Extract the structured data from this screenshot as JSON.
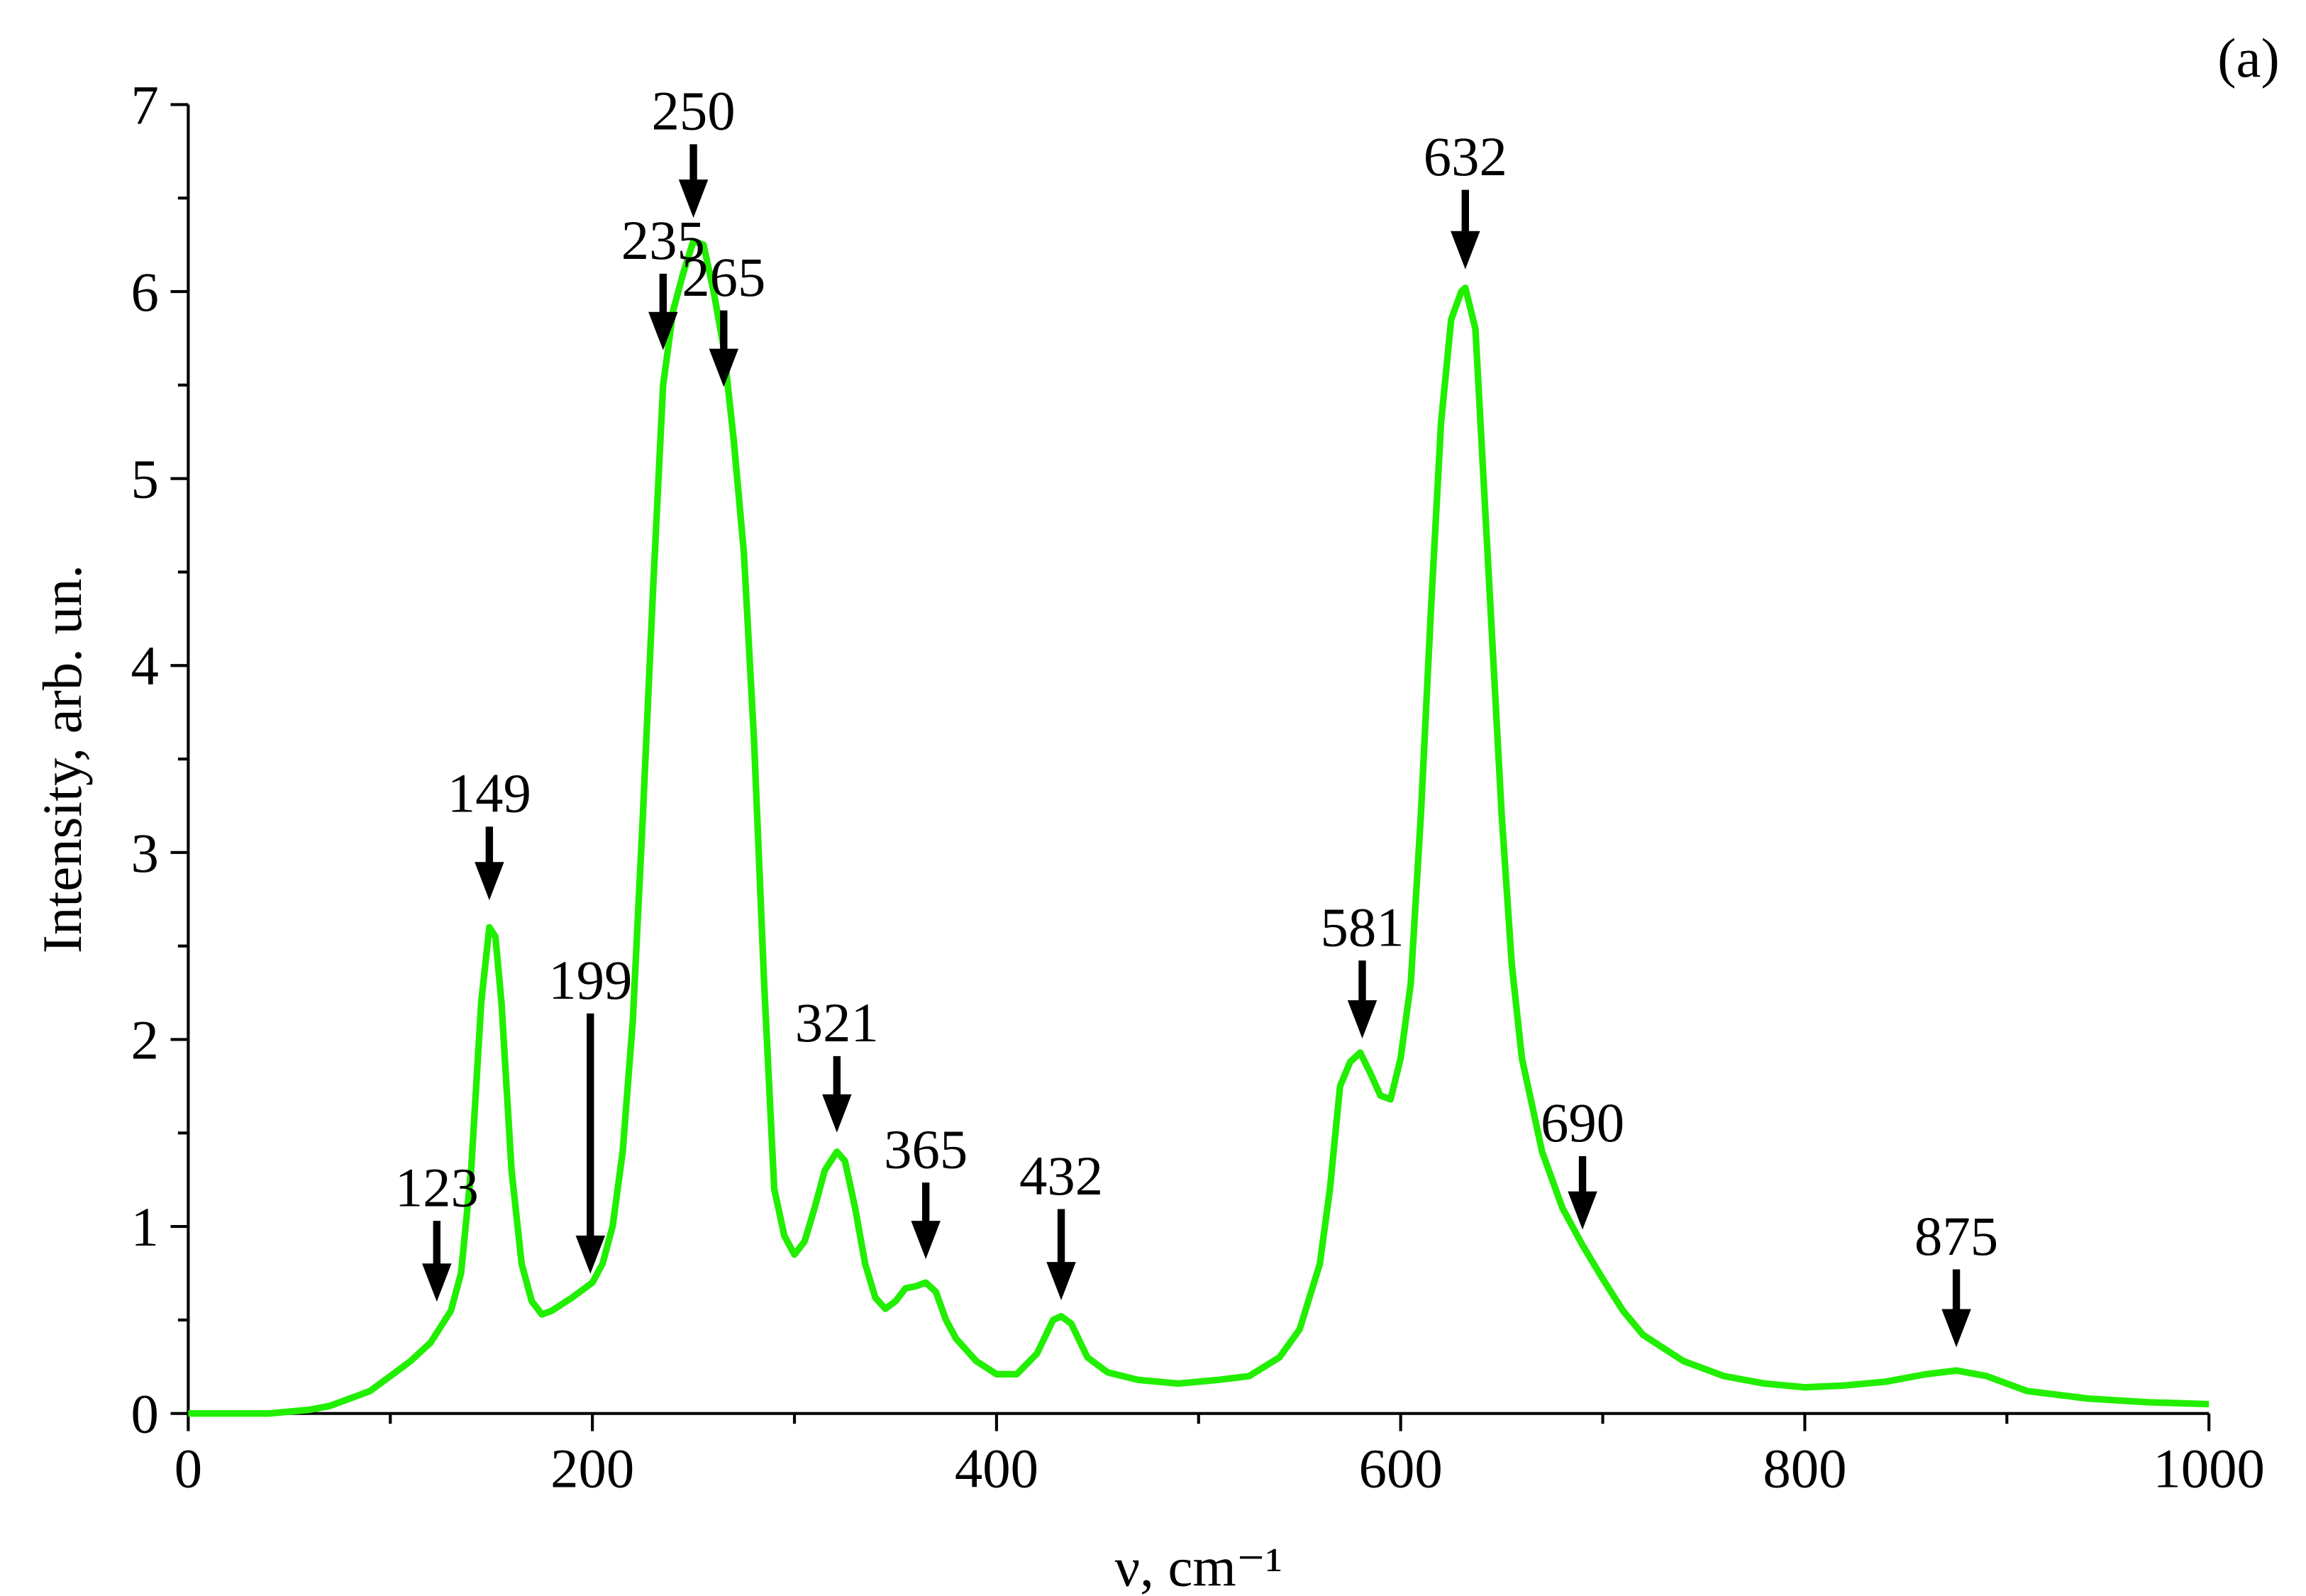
{
  "chart_data": {
    "type": "line",
    "title": "(a)",
    "x_label": "ν, cm⁻¹",
    "y_label": "Intensity, arb. un.",
    "xlim": [
      0,
      1000
    ],
    "ylim": [
      0,
      7
    ],
    "xticks": [
      0,
      200,
      400,
      600,
      800,
      1000
    ],
    "yticks": [
      0,
      1,
      2,
      3,
      4,
      5,
      6,
      7
    ],
    "x": [
      0,
      20,
      40,
      60,
      70,
      80,
      90,
      100,
      110,
      120,
      130,
      135,
      140,
      145,
      149,
      152,
      155,
      160,
      165,
      170,
      175,
      180,
      190,
      200,
      205,
      210,
      215,
      220,
      225,
      230,
      235,
      240,
      245,
      250,
      255,
      260,
      265,
      270,
      275,
      280,
      285,
      290,
      295,
      300,
      305,
      310,
      315,
      321,
      325,
      330,
      335,
      340,
      345,
      350,
      355,
      360,
      365,
      370,
      375,
      380,
      390,
      400,
      410,
      420,
      428,
      432,
      437,
      445,
      455,
      470,
      490,
      510,
      525,
      540,
      550,
      560,
      565,
      570,
      575,
      580,
      585,
      590,
      595,
      600,
      605,
      610,
      615,
      620,
      625,
      630,
      632,
      637,
      640,
      645,
      650,
      655,
      660,
      670,
      680,
      690,
      700,
      710,
      720,
      740,
      760,
      780,
      800,
      820,
      840,
      860,
      875,
      890,
      910,
      940,
      970,
      1000
    ],
    "series": [
      {
        "color": "#22ee00",
        "values": [
          0,
          0,
          0,
          0.02,
          0.04,
          0.08,
          0.12,
          0.2,
          0.28,
          0.38,
          0.55,
          0.75,
          1.3,
          2.2,
          2.6,
          2.55,
          2.2,
          1.3,
          0.8,
          0.6,
          0.53,
          0.55,
          0.62,
          0.7,
          0.8,
          1.0,
          1.4,
          2.1,
          3.2,
          4.4,
          5.5,
          5.9,
          6.1,
          6.27,
          6.25,
          6.0,
          5.7,
          5.2,
          4.6,
          3.6,
          2.3,
          1.2,
          0.95,
          0.85,
          0.92,
          1.1,
          1.3,
          1.4,
          1.35,
          1.1,
          0.8,
          0.62,
          0.56,
          0.6,
          0.67,
          0.68,
          0.7,
          0.65,
          0.5,
          0.4,
          0.28,
          0.21,
          0.21,
          0.32,
          0.5,
          0.52,
          0.48,
          0.3,
          0.22,
          0.18,
          0.16,
          0.18,
          0.2,
          0.3,
          0.45,
          0.8,
          1.2,
          1.75,
          1.88,
          1.93,
          1.82,
          1.7,
          1.68,
          1.9,
          2.3,
          3.2,
          4.3,
          5.3,
          5.85,
          6.0,
          6.02,
          5.8,
          5.2,
          4.2,
          3.2,
          2.4,
          1.9,
          1.4,
          1.1,
          0.9,
          0.72,
          0.55,
          0.42,
          0.28,
          0.2,
          0.16,
          0.14,
          0.15,
          0.17,
          0.21,
          0.23,
          0.2,
          0.12,
          0.08,
          0.06,
          0.05
        ]
      }
    ],
    "annotations": [
      123,
      149,
      199,
      235,
      250,
      265,
      321,
      365,
      432,
      581,
      632,
      690,
      875
    ]
  }
}
